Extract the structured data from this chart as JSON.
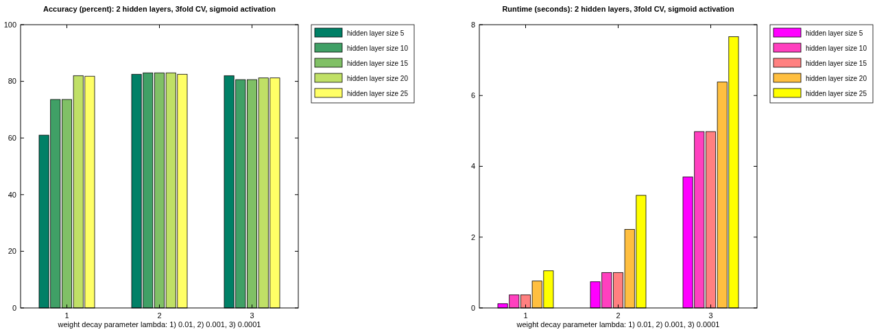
{
  "chart_data": [
    {
      "type": "bar",
      "title": "Accuracy (percent): 2 hidden layers, 3fold CV, sigmoid activation",
      "xlabel": "weight decay parameter lambda: 1) 0.01, 2) 0.001, 3) 0.0001",
      "categories": [
        "1",
        "2",
        "3"
      ],
      "ylim": [
        0,
        100
      ],
      "yticks": [
        0,
        20,
        40,
        60,
        80,
        100
      ],
      "legend": "top right",
      "grid": false,
      "series": [
        {
          "name": "hidden layer size 5",
          "color": "#008066",
          "values": [
            61,
            82.5,
            82
          ]
        },
        {
          "name": "hidden layer size 10",
          "color": "#40a066",
          "values": [
            73.6,
            83,
            80.6
          ]
        },
        {
          "name": "hidden layer size 15",
          "color": "#80c066",
          "values": [
            73.6,
            83,
            80.6
          ]
        },
        {
          "name": "hidden layer size 20",
          "color": "#c0e066",
          "values": [
            82,
            83,
            81.2
          ]
        },
        {
          "name": "hidden layer size 25",
          "color": "#ffff66",
          "values": [
            81.8,
            82.5,
            81.2
          ]
        }
      ]
    },
    {
      "type": "bar",
      "title": "Runtime (seconds): 2 hidden layers, 3fold CV, sigmoid activation",
      "xlabel": "weight decay parameter lambda: 1) 0.01, 2) 0.001, 3) 0.0001",
      "categories": [
        "1",
        "2",
        "3"
      ],
      "ylim": [
        0,
        8
      ],
      "yticks": [
        0,
        2,
        4,
        6,
        8
      ],
      "legend": "top right",
      "grid": false,
      "series": [
        {
          "name": "hidden layer size 5",
          "color": "#ff00ff",
          "values": [
            0.12,
            0.74,
            3.7
          ]
        },
        {
          "name": "hidden layer size 10",
          "color": "#ff40bf",
          "values": [
            0.37,
            1.0,
            4.98
          ]
        },
        {
          "name": "hidden layer size 15",
          "color": "#ff8080",
          "values": [
            0.37,
            1.0,
            4.98
          ]
        },
        {
          "name": "hidden layer size 20",
          "color": "#ffbf40",
          "values": [
            0.76,
            2.22,
            6.38
          ]
        },
        {
          "name": "hidden layer size 25",
          "color": "#ffff00",
          "values": [
            1.05,
            3.18,
            7.66
          ]
        }
      ]
    }
  ]
}
